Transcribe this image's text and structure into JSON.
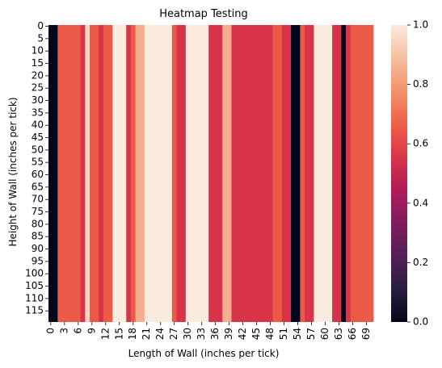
{
  "chart_data": {
    "type": "heatmap",
    "title": "Heatmap Testing",
    "xlabel": "Length of Wall (inches per tick)",
    "ylabel": "Height of Wall (inches per tick)",
    "rows": 120,
    "x_tick_labels": [
      "0",
      "3",
      "6",
      "9",
      "12",
      "15",
      "18",
      "21",
      "24",
      "27",
      "30",
      "33",
      "36",
      "39",
      "42",
      "45",
      "48",
      "51",
      "54",
      "57",
      "60",
      "63",
      "66",
      "69"
    ],
    "y_tick_labels": [
      "0",
      "5",
      "10",
      "15",
      "20",
      "25",
      "30",
      "35",
      "40",
      "45",
      "50",
      "55",
      "60",
      "65",
      "70",
      "75",
      "80",
      "85",
      "90",
      "95",
      "100",
      "105",
      "110",
      "115"
    ],
    "column_values": [
      0,
      0,
      0.65,
      0.65,
      0.65,
      0.65,
      0.65,
      0.55,
      0.95,
      0.65,
      0.65,
      0.55,
      0.65,
      0.65,
      1,
      1,
      1,
      0.55,
      0.65,
      0.85,
      0.85,
      1,
      1,
      1,
      1,
      1,
      1,
      0.65,
      0.55,
      0.55,
      1,
      1,
      1,
      1,
      1,
      0.55,
      0.55,
      0.55,
      0.85,
      0.85,
      0.55,
      0.55,
      0.55,
      0.55,
      0.55,
      0.55,
      0.55,
      0.55,
      0.55,
      0.65,
      0.65,
      0.55,
      0.55,
      0,
      0,
      0.65,
      0.55,
      0.55,
      1,
      1,
      1,
      1,
      0.55,
      0.55,
      0,
      0.55,
      0.65,
      0.65,
      0.65,
      0.65,
      0.65
    ],
    "colorbar": {
      "range": [
        0,
        1
      ],
      "ticks": [
        "0.0",
        "0.2",
        "0.4",
        "0.6",
        "0.8",
        "1.0"
      ],
      "colormap": "rocket",
      "stops": [
        "#03051a",
        "#2c1e3e",
        "#541f58",
        "#811c5c",
        "#b11b58",
        "#d93549",
        "#ee6046",
        "#f3926b",
        "#f6be9f",
        "#faebdd"
      ]
    },
    "grid": false
  }
}
